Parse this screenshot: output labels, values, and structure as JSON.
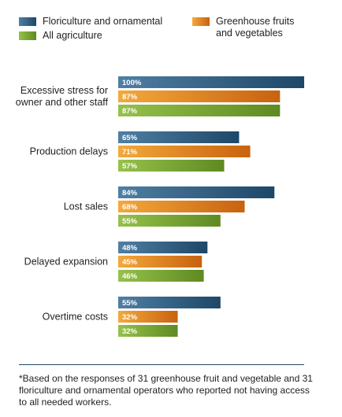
{
  "legend": {
    "floriculture": "Floriculture and ornamental",
    "all_agriculture": "All agriculture",
    "greenhouse": "Greenhouse fruits and vegetables"
  },
  "colors": {
    "floriculture": [
      "#4f7fa3",
      "#1e4768"
    ],
    "greenhouse": [
      "#f3a93c",
      "#c8620f"
    ],
    "all_agriculture": [
      "#96c14b",
      "#5e8a22"
    ]
  },
  "chart_data": {
    "type": "bar",
    "orientation": "horizontal",
    "categories": [
      "Excessive stress for owner and other staff",
      "Production delays",
      "Lost sales",
      "Delayed expansion",
      "Overtime costs"
    ],
    "series": [
      {
        "name": "Floriculture and ornamental",
        "values": [
          100,
          65,
          84,
          48,
          55
        ]
      },
      {
        "name": "Greenhouse fruits and vegetables",
        "values": [
          87,
          71,
          68,
          45,
          32
        ]
      },
      {
        "name": "All agriculture",
        "values": [
          87,
          57,
          55,
          46,
          32
        ]
      }
    ],
    "value_suffix": "%",
    "xlim": [
      0,
      100
    ],
    "legend_position": "top",
    "grid": false
  },
  "footnote": "*Based on the responses of 31 greenhouse fruit and vegetable and 31 floriculture and ornamental operators who reported not having access to all needed workers."
}
